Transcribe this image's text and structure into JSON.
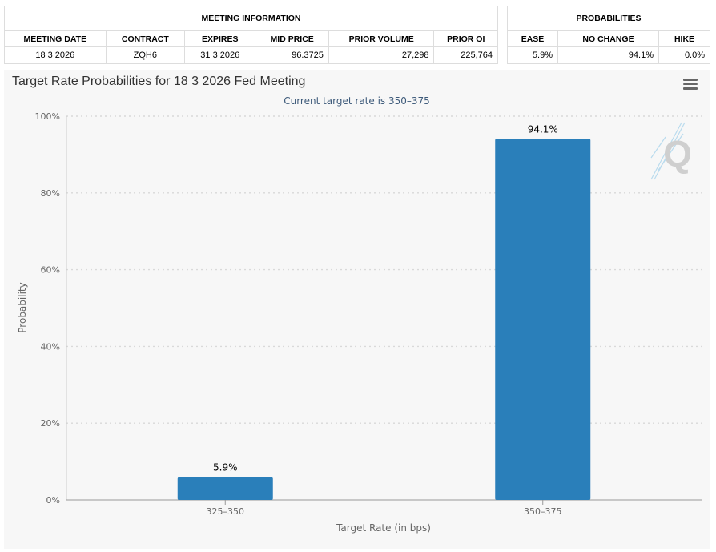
{
  "meeting_info": {
    "title": "MEETING INFORMATION",
    "headers": [
      "MEETING DATE",
      "CONTRACT",
      "EXPIRES",
      "MID PRICE",
      "PRIOR VOLUME",
      "PRIOR OI"
    ],
    "row": [
      "18 3 2026",
      "ZQH6",
      "31 3 2026",
      "96.3725",
      "27,298",
      "225,764"
    ]
  },
  "probabilities": {
    "title": "PROBABILITIES",
    "headers": [
      "EASE",
      "NO CHANGE",
      "HIKE"
    ],
    "row": [
      "5.9%",
      "94.1%",
      "0.0%"
    ]
  },
  "chart": {
    "title": "Target Rate Probabilities for 18 3 2026 Fed Meeting",
    "subtitle": "Current target rate is 350–375",
    "logo_letter": "Q"
  },
  "colors": {
    "bar": "#2a7fba",
    "grid": "#d9d9d9",
    "panel_bg": "#f7f7f7"
  },
  "chart_data": {
    "type": "bar",
    "title": "Target Rate Probabilities for 18 3 2026 Fed Meeting",
    "subtitle": "Current target rate is 350–375",
    "xlabel": "Target Rate (in bps)",
    "ylabel": "Probability",
    "categories": [
      "325–350",
      "350–375"
    ],
    "values": [
      5.9,
      94.1
    ],
    "data_labels": [
      "5.9%",
      "94.1%"
    ],
    "ylim": [
      0,
      100
    ],
    "yticks": [
      0,
      20,
      40,
      60,
      80,
      100
    ],
    "ytick_labels": [
      "0%",
      "20%",
      "40%",
      "60%",
      "80%",
      "100%"
    ],
    "grid": true,
    "legend": "none"
  }
}
